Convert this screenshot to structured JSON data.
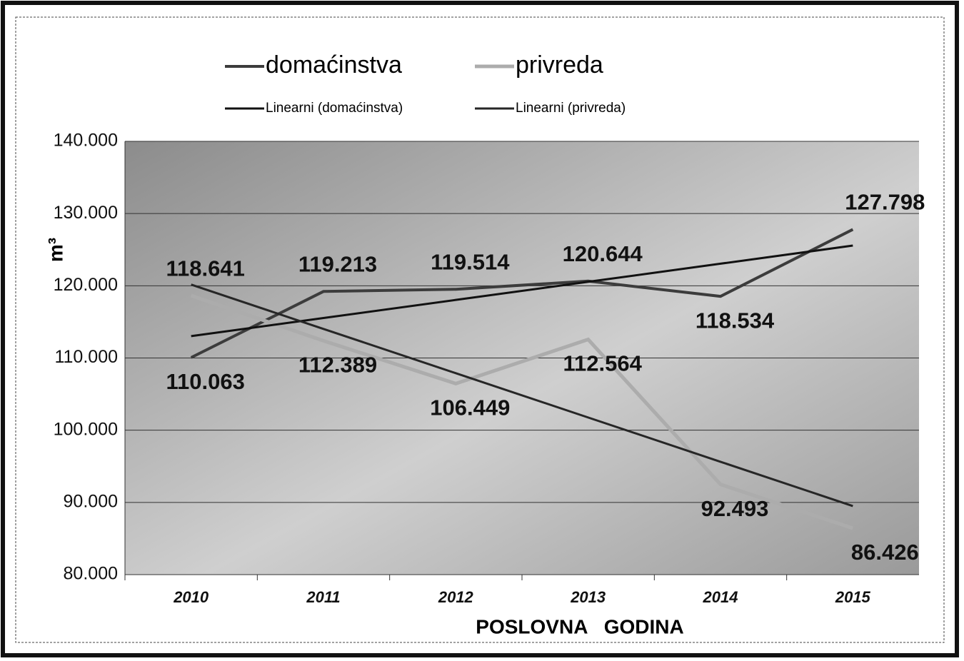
{
  "chart_data": {
    "type": "line",
    "x_label": "POSLOVNA   GODINA",
    "y_label": "m³",
    "categories": [
      "2010",
      "2011",
      "2012",
      "2013",
      "2014",
      "2015"
    ],
    "series": [
      {
        "name": "domaćinstva",
        "color": "#3c3c3c",
        "values": [
          110063,
          119213,
          119514,
          120644,
          118534,
          127798
        ],
        "value_labels": [
          "110.063",
          "119.213",
          "119.514",
          "120.644",
          "118.534",
          "127.798"
        ]
      },
      {
        "name": "privreda",
        "color": "#acacac",
        "values": [
          118641,
          112389,
          106449,
          112564,
          92493,
          86426
        ],
        "value_labels": [
          "118.641",
          "112.389",
          "106.449",
          "112.564",
          "92.493",
          "86.426"
        ]
      },
      {
        "name": "Linearni (domaćinstva)",
        "color": "#111111",
        "values": [
          113025,
          115533,
          118041,
          120548,
          123056,
          125564
        ]
      },
      {
        "name": "Linearni (privreda)",
        "color": "#262626",
        "values": [
          120159,
          114026,
          107893,
          101760,
          95628,
          89495
        ]
      }
    ],
    "ylim": [
      80000,
      140000
    ],
    "yticks": [
      {
        "value": 80000,
        "label": "80.000"
      },
      {
        "value": 90000,
        "label": "90.000"
      },
      {
        "value": 100000,
        "label": "100.000"
      },
      {
        "value": 110000,
        "label": "110.000"
      },
      {
        "value": 120000,
        "label": "120.000"
      },
      {
        "value": 130000,
        "label": "130.000"
      },
      {
        "value": 140000,
        "label": "140.000"
      }
    ],
    "grid": true
  }
}
